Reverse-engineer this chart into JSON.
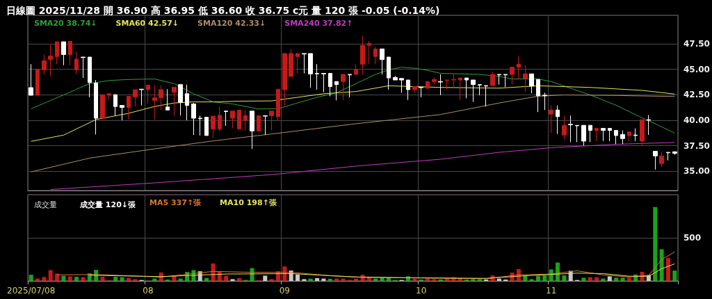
{
  "chart_data": [
    {
      "type": "candlestick",
      "title": "日線圖 2025/11/28 開 36.90 高 36.95 低 36.60 收 36.75 c元 量 120 張 -0.05 (-0.14%)",
      "categories": [
        "2025/07/08",
        null,
        null,
        null,
        null,
        null,
        null,
        null,
        null,
        null,
        null,
        null,
        null,
        null,
        null,
        null,
        null,
        null,
        "08",
        null,
        null,
        null,
        null,
        null,
        null,
        null,
        null,
        null,
        null,
        null,
        null,
        null,
        null,
        null,
        null,
        null,
        null,
        null,
        null,
        "09",
        null,
        null,
        null,
        null,
        null,
        null,
        null,
        null,
        null,
        null,
        null,
        null,
        null,
        null,
        null,
        null,
        null,
        null,
        null,
        null,
        "10",
        null,
        null,
        null,
        null,
        null,
        null,
        null,
        null,
        null,
        null,
        null,
        null,
        null,
        null,
        null,
        null,
        null,
        null,
        null,
        "11",
        null,
        null,
        null,
        null,
        null,
        null,
        null,
        null,
        null,
        null,
        null,
        null,
        null,
        null,
        null,
        null,
        null,
        null,
        null
      ],
      "ohlc": [
        [
          43.2,
          45.5,
          42.45,
          42.45
        ],
        [
          42.45,
          45.0,
          42.45,
          45.0
        ],
        [
          44.95,
          46.45,
          44.5,
          45.85
        ],
        [
          45.95,
          47.5,
          44.3,
          46.3
        ],
        [
          46.25,
          47.7,
          45.5,
          47.7
        ],
        [
          47.7,
          47.7,
          45.4,
          46.45
        ],
        [
          46.45,
          47.75,
          45.4,
          47.75
        ],
        [
          44.95,
          46.75,
          44.5,
          46.0
        ],
        [
          46.2,
          46.2,
          44.15,
          46.15
        ],
        [
          46.2,
          46.2,
          42.25,
          43.7
        ],
        [
          43.65,
          43.95,
          38.6,
          40.2
        ],
        [
          40.2,
          42.5,
          40.2,
          42.5
        ],
        [
          42.45,
          42.6,
          42.0,
          42.6
        ],
        [
          42.5,
          42.55,
          40.45,
          41.35
        ],
        [
          41.45,
          41.45,
          40.0,
          41.25
        ],
        [
          41.25,
          42.35,
          40.1,
          42.35
        ],
        [
          42.3,
          43.0,
          41.35,
          43.0
        ],
        [
          43.05,
          43.05,
          41.45,
          43.0
        ],
        [
          43.0,
          43.45,
          41.7,
          43.45
        ],
        [
          41.95,
          43.4,
          40.1,
          42.2
        ],
        [
          42.2,
          43.4,
          41.0,
          43.0
        ],
        [
          41.3,
          43.05,
          41.0,
          41.0
        ],
        [
          42.75,
          43.25,
          40.45,
          43.25
        ],
        [
          43.5,
          43.5,
          40.45,
          41.75
        ],
        [
          42.6,
          43.5,
          40.0,
          41.45
        ],
        [
          41.6,
          41.7,
          38.55,
          40.2
        ],
        [
          40.2,
          40.45,
          38.5,
          40.15
        ],
        [
          40.3,
          40.3,
          38.5,
          38.5
        ],
        [
          39.15,
          40.4,
          38.25,
          40.4
        ],
        [
          39.15,
          41.35,
          38.95,
          40.5
        ],
        [
          40.9,
          40.9,
          39.45,
          40.85
        ],
        [
          40.2,
          40.9,
          39.2,
          40.9
        ],
        [
          39.15,
          41.0,
          39.1,
          41.0
        ],
        [
          40.0,
          41.0,
          39.0,
          40.45
        ],
        [
          40.9,
          40.9,
          37.2,
          38.95
        ],
        [
          38.95,
          40.45,
          38.95,
          40.45
        ],
        [
          40.45,
          40.45,
          38.55,
          40.4
        ],
        [
          40.45,
          40.9,
          39.0,
          40.9
        ],
        [
          40.35,
          43.05,
          40.0,
          43.05
        ],
        [
          43.0,
          46.55,
          41.45,
          46.55
        ],
        [
          44.3,
          47.0,
          44.3,
          46.55
        ],
        [
          46.25,
          46.55,
          44.6,
          46.55
        ],
        [
          46.55,
          46.55,
          44.6,
          46.5
        ],
        [
          46.55,
          46.55,
          43.2,
          44.55
        ],
        [
          44.6,
          45.5,
          43.0,
          44.55
        ],
        [
          44.6,
          44.6,
          42.75,
          44.55
        ],
        [
          44.6,
          44.6,
          42.35,
          43.3
        ],
        [
          43.8,
          43.8,
          41.95,
          43.5
        ],
        [
          43.8,
          44.5,
          42.0,
          44.5
        ],
        [
          44.5,
          44.5,
          42.25,
          44.45
        ],
        [
          44.5,
          45.5,
          44.5,
          45.0
        ],
        [
          45.5,
          48.3,
          44.5,
          47.35
        ],
        [
          47.35,
          47.75,
          45.5,
          47.55
        ],
        [
          46.25,
          47.2,
          45.5,
          47.0
        ],
        [
          47.0,
          47.0,
          44.5,
          45.95
        ],
        [
          46.2,
          46.2,
          43.0,
          44.15
        ],
        [
          44.2,
          44.35,
          43.95,
          43.95
        ],
        [
          44.1,
          44.1,
          42.7,
          43.95
        ],
        [
          43.95,
          43.95,
          42.0,
          43.0
        ],
        [
          43.0,
          43.3,
          42.7,
          43.3
        ],
        [
          43.25,
          43.25,
          42.25,
          43.2
        ],
        [
          43.15,
          43.8,
          43.0,
          43.8
        ],
        [
          43.8,
          44.2,
          43.5,
          44.0
        ],
        [
          43.8,
          44.5,
          42.45,
          43.75
        ],
        [
          43.9,
          43.95,
          43.05,
          43.95
        ],
        [
          43.95,
          44.5,
          43.15,
          44.0
        ],
        [
          43.95,
          44.15,
          41.95,
          44.15
        ],
        [
          44.15,
          44.15,
          42.15,
          43.95
        ],
        [
          43.95,
          43.95,
          41.8,
          43.5
        ],
        [
          43.5,
          43.5,
          42.45,
          43.45
        ],
        [
          43.4,
          43.4,
          41.35,
          43.35
        ],
        [
          43.4,
          44.75,
          43.4,
          44.5
        ],
        [
          44.5,
          44.5,
          43.5,
          44.45
        ],
        [
          44.5,
          44.5,
          43.25,
          44.45
        ],
        [
          44.5,
          45.2,
          43.5,
          45.2
        ],
        [
          45.2,
          46.35,
          44.1,
          45.5
        ],
        [
          44.1,
          45.4,
          42.8,
          44.55
        ],
        [
          44.55,
          44.55,
          42.65,
          43.35
        ],
        [
          44.0,
          44.0,
          40.8,
          42.4
        ],
        [
          42.45,
          42.7,
          41.0,
          42.4
        ],
        [
          40.6,
          41.45,
          38.75,
          41.0
        ],
        [
          41.0,
          41.45,
          38.65,
          40.35
        ],
        [
          38.55,
          40.45,
          38.1,
          39.5
        ],
        [
          39.6,
          40.45,
          37.85,
          39.55
        ],
        [
          39.5,
          39.5,
          37.85,
          39.45
        ],
        [
          39.5,
          39.5,
          37.5,
          37.95
        ],
        [
          39.5,
          39.5,
          37.85,
          39.0
        ],
        [
          39.0,
          39.2,
          37.95,
          39.2
        ],
        [
          39.2,
          39.2,
          37.95,
          39.0
        ],
        [
          39.2,
          39.2,
          37.95,
          39.0
        ],
        [
          39.0,
          39.0,
          37.65,
          38.5
        ],
        [
          38.6,
          39.0,
          37.65,
          38.2
        ],
        [
          38.5,
          38.85,
          37.95,
          38.85
        ],
        [
          38.55,
          39.2,
          37.95,
          38.5
        ],
        [
          37.95,
          40.05,
          37.5,
          40.05
        ],
        [
          40.05,
          40.5,
          38.55,
          40.0
        ],
        [
          36.95,
          36.95,
          35.15,
          36.5
        ],
        [
          35.75,
          36.85,
          35.4,
          36.5
        ],
        [
          36.85,
          36.85,
          36.05,
          36.8
        ],
        [
          36.9,
          36.95,
          36.6,
          36.75
        ]
      ],
      "colors": [
        "#ffffff",
        "#c41a1a",
        "#c41a1a",
        "#c41a1a",
        "#c41a1a",
        "#ffffff",
        "#c41a1a",
        "#c41a1a",
        "#ffffff",
        "#ffffff",
        "#ffffff",
        "#c41a1a",
        "#c41a1a",
        "#ffffff",
        "#ffffff",
        "#c41a1a",
        "#c41a1a",
        "#ffffff",
        "#c41a1a",
        "#c41a1a",
        "#c41a1a",
        "#ffffff",
        "#c41a1a",
        "#ffffff",
        "#ffffff",
        "#ffffff",
        "#ffffff",
        "#ffffff",
        "#c41a1a",
        "#c41a1a",
        "#ffffff",
        "#c41a1a",
        "#c41a1a",
        "#c41a1a",
        "#ffffff",
        "#c41a1a",
        "#ffffff",
        "#c41a1a",
        "#c41a1a",
        "#c41a1a",
        "#c41a1a",
        "#c41a1a",
        "#ffffff",
        "#ffffff",
        "#ffffff",
        "#ffffff",
        "#ffffff",
        "#ffffff",
        "#c41a1a",
        "#ffffff",
        "#c41a1a",
        "#c41a1a",
        "#c41a1a",
        "#c41a1a",
        "#ffffff",
        "#ffffff",
        "#ffffff",
        "#ffffff",
        "#ffffff",
        "#c41a1a",
        "#ffffff",
        "#c41a1a",
        "#c41a1a",
        "#ffffff",
        "#c41a1a",
        "#c41a1a",
        "#c41a1a",
        "#ffffff",
        "#ffffff",
        "#ffffff",
        "#ffffff",
        "#c41a1a",
        "#ffffff",
        "#ffffff",
        "#c41a1a",
        "#c41a1a",
        "#c41a1a",
        "#ffffff",
        "#ffffff",
        "#ffffff",
        "#c41a1a",
        "#ffffff",
        "#c41a1a",
        "#ffffff",
        "#ffffff",
        "#ffffff",
        "#ffffff",
        "#c41a1a",
        "#ffffff",
        "#ffffff",
        "#ffffff",
        "#ffffff",
        "#c41a1a",
        "#ffffff",
        "#c41a1a",
        "#ffffff",
        "#ffffff",
        "#c41a1a",
        "#ffffff",
        "#ffffff"
      ],
      "series": [
        {
          "type": "line",
          "name": "SMA20 38.74↓",
          "color": "#2e9e3a",
          "values": [
            41.13,
            null,
            null,
            null,
            null,
            42.48,
            null,
            null,
            null,
            43.6,
            null,
            null,
            43.9,
            null,
            null,
            44.0,
            null,
            null,
            null,
            44.05,
            null,
            null,
            43.6,
            null,
            null,
            42.6,
            null,
            null,
            41.8,
            null,
            null,
            41.6,
            null,
            null,
            null,
            41.1,
            null,
            null,
            41.13,
            null,
            null,
            41.7,
            null,
            null,
            42.25,
            null,
            null,
            42.7,
            null,
            null,
            43.6,
            null,
            null,
            44.5,
            null,
            44.95,
            null,
            45.2,
            null,
            45.1,
            null,
            44.9,
            null,
            44.6,
            null,
            null,
            44.55,
            null,
            null,
            44.5,
            null,
            null,
            44.3,
            null,
            44.05,
            null,
            null,
            null,
            44.05,
            null,
            43.8,
            null,
            43.35,
            null,
            null,
            null,
            42.48,
            null,
            null,
            null,
            41.47,
            null,
            null,
            null,
            40.23,
            null,
            39.66,
            null,
            null,
            38.74
          ]
        },
        {
          "type": "line",
          "name": "SMA60 42.57↓",
          "color": "#e6e35a",
          "values": [
            37.93,
            null,
            null,
            null,
            null,
            38.54,
            null,
            null,
            null,
            null,
            40.07,
            null,
            null,
            null,
            null,
            40.68,
            null,
            null,
            null,
            41.35,
            null,
            null,
            41.69,
            null,
            null,
            41.8,
            null,
            null,
            41.8,
            null,
            null,
            null,
            41.87,
            null,
            null,
            null,
            null,
            41.9,
            null,
            null,
            null,
            null,
            null,
            null,
            null,
            42.6,
            null,
            null,
            null,
            null,
            42.82,
            null,
            null,
            null,
            null,
            43.38,
            null,
            null,
            null,
            null,
            null,
            null,
            null,
            43.22,
            null,
            null,
            null,
            null,
            null,
            null,
            null,
            null,
            43.15,
            null,
            null,
            null,
            null,
            null,
            43.38,
            null,
            null,
            null,
            null,
            null,
            null,
            null,
            43.22,
            null,
            null,
            null,
            null,
            null,
            null,
            null,
            42.93,
            null,
            null,
            null,
            null,
            42.57
          ]
        },
        {
          "type": "line",
          "name": "SMA120 42.33↓",
          "color": "#b08d64",
          "values": [
            34.93,
            null,
            null,
            null,
            null,
            null,
            null,
            null,
            null,
            36.28,
            null,
            null,
            null,
            null,
            null,
            null,
            null,
            null,
            null,
            37.19,
            null,
            null,
            null,
            null,
            null,
            null,
            null,
            null,
            37.97,
            null,
            null,
            null,
            null,
            null,
            null,
            null,
            null,
            38.65,
            null,
            null,
            null,
            null,
            null,
            null,
            null,
            null,
            null,
            null,
            null,
            null,
            39.66,
            null,
            null,
            null,
            null,
            null,
            null,
            null,
            null,
            null,
            null,
            null,
            null,
            40.56,
            null,
            null,
            null,
            null,
            null,
            null,
            null,
            null,
            41.69,
            null,
            null,
            null,
            null,
            null,
            42.36,
            null,
            null,
            null,
            42.48,
            null,
            null,
            null,
            null,
            null,
            null,
            null,
            42.43,
            null,
            null,
            null,
            null,
            null,
            null,
            null,
            null,
            42.33
          ]
        },
        {
          "type": "line",
          "name": "SMA240 37.82↑",
          "color": "#c03cc0",
          "values": [
            null,
            null,
            null,
            33.2,
            null,
            null,
            null,
            null,
            null,
            null,
            null,
            null,
            null,
            null,
            null,
            null,
            null,
            null,
            null,
            33.85,
            null,
            null,
            null,
            null,
            null,
            null,
            null,
            null,
            null,
            null,
            null,
            null,
            null,
            null,
            null,
            null,
            null,
            34.66,
            null,
            null,
            null,
            null,
            null,
            null,
            null,
            null,
            null,
            null,
            null,
            null,
            35.5,
            null,
            null,
            null,
            null,
            null,
            null,
            null,
            null,
            null,
            null,
            null,
            null,
            36.17,
            null,
            null,
            null,
            null,
            null,
            null,
            null,
            null,
            36.85,
            null,
            null,
            null,
            null,
            null,
            null,
            null,
            37.3,
            null,
            null,
            null,
            null,
            null,
            null,
            null,
            null,
            null,
            37.64,
            null,
            null,
            null,
            null,
            null,
            null,
            null,
            null,
            37.82
          ]
        }
      ],
      "ylim": [
        33.1,
        50.3
      ],
      "yticks": [
        {
          "value": 35,
          "label": "35.00"
        },
        {
          "value": 37.5,
          "label": "37.50"
        },
        {
          "value": 40,
          "label": "40.00"
        },
        {
          "value": 42.5,
          "label": "42.50"
        },
        {
          "value": 45,
          "label": "45.00"
        },
        {
          "value": 47.5,
          "label": "47.50"
        }
      ],
      "grid": true,
      "legend": "top left",
      "tick_labels": "y",
      "marker": "none"
    },
    {
      "type": "bar",
      "title": "成交量",
      "categories": [
        "2025/07/08",
        null,
        null,
        null,
        null,
        null,
        null,
        null,
        null,
        null,
        null,
        null,
        null,
        null,
        null,
        null,
        null,
        null,
        "08",
        null,
        null,
        null,
        null,
        null,
        null,
        null,
        null,
        null,
        null,
        null,
        null,
        null,
        null,
        null,
        null,
        null,
        null,
        null,
        null,
        "09",
        null,
        null,
        null,
        null,
        null,
        null,
        null,
        null,
        null,
        null,
        null,
        null,
        null,
        null,
        null,
        null,
        null,
        null,
        null,
        null,
        "10",
        null,
        null,
        null,
        null,
        null,
        null,
        null,
        null,
        null,
        null,
        null,
        null,
        null,
        null,
        null,
        null,
        null,
        null,
        null,
        "11",
        null,
        null,
        null,
        null,
        null,
        null,
        null,
        null,
        null,
        null,
        null,
        null,
        null,
        null,
        null,
        null,
        null,
        null,
        null
      ],
      "series": [
        {
          "type": "bar",
          "color": "#c41a1a",
          "values": [
            72,
            27,
            45,
            125,
            85,
            59,
            53,
            48,
            43,
            88,
            128,
            48,
            5,
            48,
            43,
            35,
            21,
            11,
            null,
            27,
            98,
            16,
            61,
            27,
            104,
            125,
            112,
            35,
            202,
            106,
            59,
            21,
            32,
            11,
            149,
            8,
            61,
            21,
            112,
            168,
            120,
            74,
            21,
            27,
            32,
            27,
            24,
            27,
            27,
            11,
            27,
            72,
            48,
            27,
            37,
            37,
            11,
            11,
            53,
            27,
            16,
            27,
            21,
            16,
            27,
            43,
            27,
            16,
            21,
            21,
            16,
            64,
            27,
            16,
            96,
            138,
            59,
            21,
            59,
            64,
            133,
            213,
            64,
            117,
            11,
            37,
            43,
            43,
            27,
            53,
            37,
            37,
            37,
            74,
            106,
            69,
            857,
            367,
            266,
            120
          ],
          "colors": [
            "#1aa31a",
            "#c41a1a",
            "#c41a1a",
            "#c41a1a",
            "#c41a1a",
            "#1aa31a",
            "#c41a1a",
            "#1aa31a",
            "#c41a1a",
            "#1aa31a",
            "#1aa31a",
            "#c41a1a",
            "#c41a1a",
            "#1aa31a",
            "#1aa31a",
            "#c41a1a",
            "#c41a1a",
            "#c8c8c8",
            "#c41a1a",
            "#1aa31a",
            "#c41a1a",
            "#1aa31a",
            "#c41a1a",
            "#1aa31a",
            "#1aa31a",
            "#1aa31a",
            "#c8c8c8",
            "#1aa31a",
            "#c41a1a",
            "#c41a1a",
            "#c41a1a",
            "#c8c8c8",
            "#c41a1a",
            "#1aa31a",
            "#1aa31a",
            "#c41a1a",
            "#c8c8c8",
            "#c41a1a",
            "#c41a1a",
            "#c41a1a",
            "#c8c8c8",
            "#c8c8c8",
            "#c8c8c8",
            "#1aa31a",
            "#c8c8c8",
            "#c8c8c8",
            "#1aa31a",
            "#c41a1a",
            "#c41a1a",
            "#c41a1a",
            "#c41a1a",
            "#c41a1a",
            "#c41a1a",
            "#1aa31a",
            "#1aa31a",
            "#1aa31a",
            "#1aa31a",
            "#c8c8c8",
            "#1aa31a",
            "#c41a1a",
            "#1aa31a",
            "#c41a1a",
            "#c41a1a",
            "#1aa31a",
            "#c41a1a",
            "#c41a1a",
            "#c41a1a",
            "#1aa31a",
            "#1aa31a",
            "#1aa31a",
            "#c8c8c8",
            "#c41a1a",
            "#c8c8c8",
            "#c8c8c8",
            "#c41a1a",
            "#c41a1a",
            "#1aa31a",
            "#1aa31a",
            "#1aa31a",
            "#1aa31a",
            "#1aa31a",
            "#1aa31a",
            "#1aa31a",
            "#c8c8c8",
            "#c8c8c8",
            "#1aa31a",
            "#c41a1a",
            "#c41a1a",
            "#1aa31a",
            "#c8c8c8",
            "#1aa31a",
            "#1aa31a",
            "#c41a1a",
            "#1aa31a",
            "#c41a1a",
            "#c8c8c8",
            "#1aa31a",
            "#1aa31a",
            "#c41a1a",
            "#1aa31a"
          ]
        },
        {
          "type": "line",
          "name": "MA5 337↑張",
          "color": "#d8782e",
          "values": [
            null,
            null,
            null,
            null,
            70,
            null,
            null,
            null,
            null,
            null,
            75,
            null,
            null,
            null,
            null,
            null,
            null,
            null,
            null,
            null,
            45,
            null,
            null,
            null,
            null,
            null,
            null,
            null,
            110,
            null,
            null,
            null,
            null,
            null,
            100,
            null,
            null,
            null,
            null,
            null,
            100,
            null,
            null,
            null,
            null,
            null,
            60,
            null,
            null,
            null,
            null,
            null,
            40,
            null,
            null,
            null,
            null,
            null,
            null,
            null,
            35,
            null,
            null,
            null,
            null,
            null,
            null,
            null,
            null,
            null,
            25,
            null,
            null,
            null,
            null,
            70,
            null,
            null,
            null,
            null,
            80,
            null,
            null,
            null,
            117,
            null,
            null,
            null,
            70,
            null,
            null,
            null,
            45,
            null,
            null,
            64,
            null,
            247,
            null,
            337
          ]
        },
        {
          "type": "line",
          "name": "MA10 198↑張",
          "color": "#e6e35a",
          "values": [
            null,
            null,
            null,
            null,
            null,
            null,
            null,
            null,
            null,
            66,
            null,
            null,
            null,
            null,
            null,
            null,
            null,
            null,
            null,
            null,
            50,
            null,
            null,
            null,
            null,
            null,
            null,
            null,
            null,
            null,
            80,
            null,
            null,
            null,
            null,
            null,
            null,
            null,
            null,
            null,
            85,
            null,
            null,
            null,
            null,
            null,
            null,
            null,
            null,
            null,
            45,
            null,
            null,
            null,
            null,
            null,
            null,
            null,
            null,
            null,
            35,
            null,
            null,
            null,
            null,
            null,
            null,
            null,
            null,
            null,
            30,
            null,
            null,
            null,
            null,
            null,
            60,
            null,
            null,
            null,
            null,
            null,
            null,
            null,
            90,
            null,
            null,
            null,
            85,
            null,
            null,
            null,
            55,
            null,
            null,
            53,
            null,
            141,
            null,
            198
          ]
        }
      ],
      "annotations": [
        "成交量 120↓張"
      ],
      "ylim": [
        0,
        1000
      ],
      "yticks": [
        500
      ],
      "grid": true,
      "legend": "top left",
      "marker": "none"
    }
  ]
}
